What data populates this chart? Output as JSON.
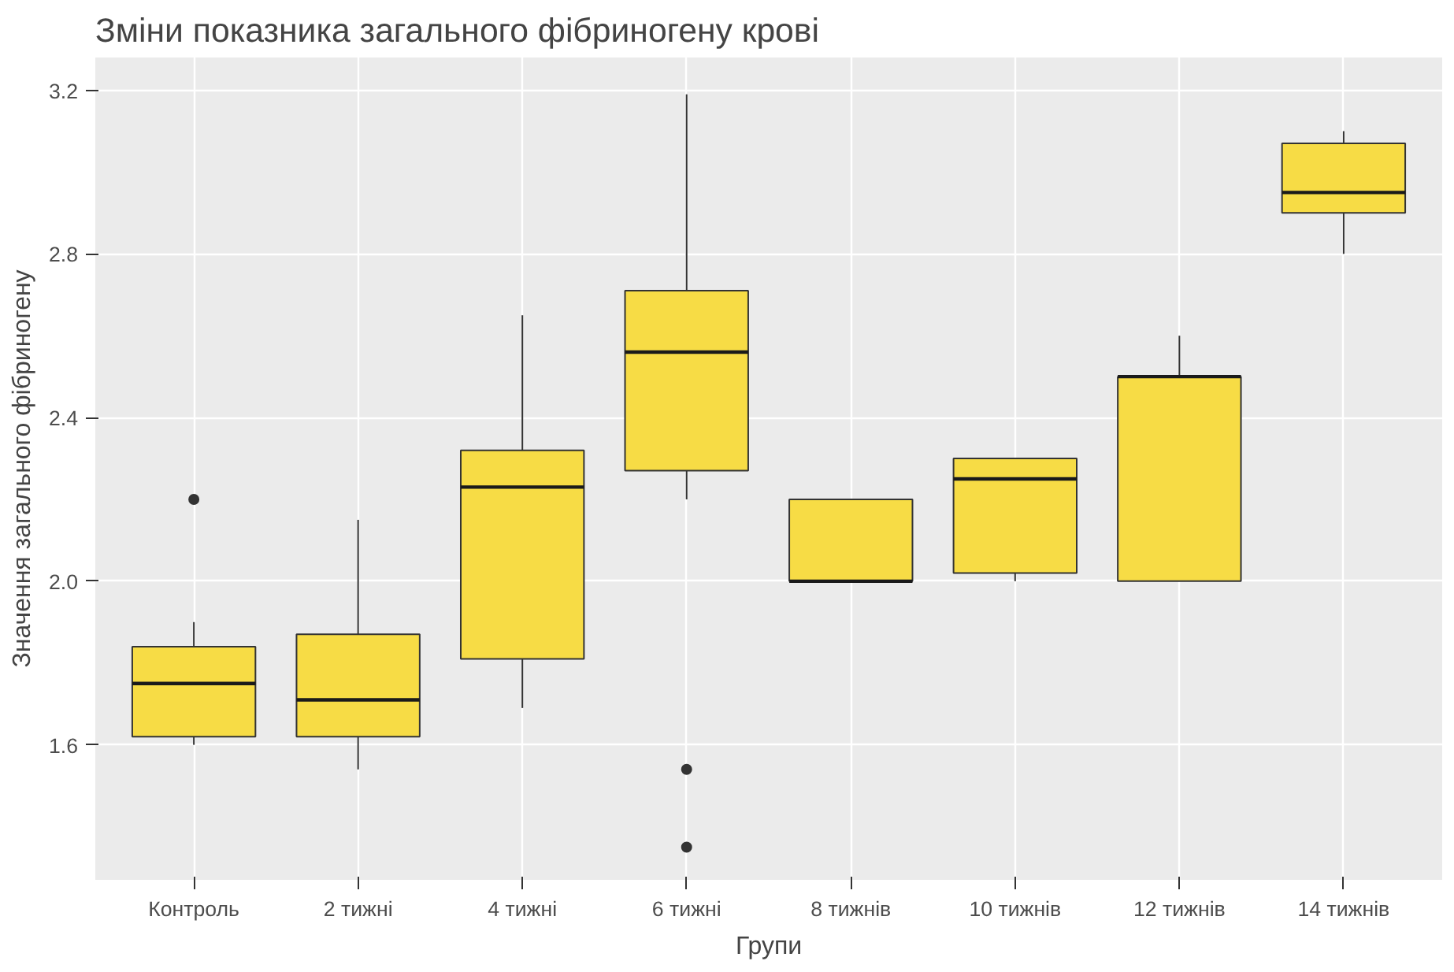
{
  "chart_data": {
    "type": "box",
    "title": "Зміни показника загального фібриногену крові",
    "xlabel": "Групи",
    "ylabel": "Значення загального фібриногену",
    "categories": [
      "Контроль",
      "2 тижні",
      "4 тижні",
      "6 тижні",
      "8 тижнів",
      "10 тижнів",
      "12 тижнів",
      "14 тижнів"
    ],
    "color": "#f7dc45",
    "ylim": [
      1.27,
      3.28
    ],
    "yticks": [
      1.6,
      {
        "value": 2.0,
        "label": "2.0"
      },
      2.4,
      2.8,
      3.2
    ],
    "grid": true,
    "boxes": [
      {
        "low": 1.6,
        "q1": 1.62,
        "median": 1.75,
        "q3": 1.84,
        "high": 1.9,
        "outliers": [
          2.2
        ]
      },
      {
        "low": 1.54,
        "q1": 1.62,
        "median": 1.71,
        "q3": 1.87,
        "high": 2.15
      },
      {
        "low": 1.69,
        "q1": 1.81,
        "median": 2.23,
        "q3": 2.32,
        "high": 2.65
      },
      {
        "low": 2.2,
        "q1": 2.27,
        "median": 2.56,
        "q3": 2.71,
        "high": 3.19,
        "outliers": [
          1.54,
          1.35
        ]
      },
      {
        "low": 2.0,
        "q1": 2.0,
        "median": 2.0,
        "q3": 2.2,
        "high": 2.2
      },
      {
        "low": 2.0,
        "q1": 2.02,
        "median": 2.25,
        "q3": 2.3,
        "high": 2.3
      },
      {
        "low": 2.0,
        "q1": 2.0,
        "median": 2.5,
        "q3": 2.5,
        "high": 2.6
      },
      {
        "low": 2.8,
        "q1": 2.9,
        "median": 2.95,
        "q3": 3.07,
        "high": 3.1
      }
    ]
  }
}
